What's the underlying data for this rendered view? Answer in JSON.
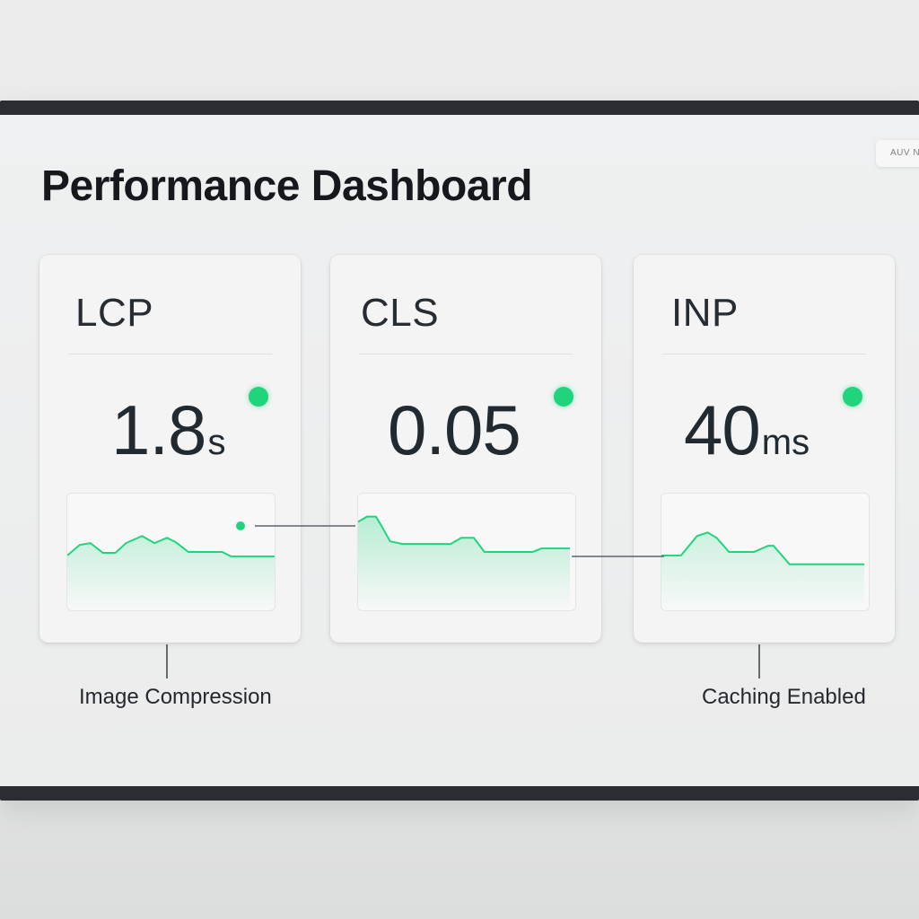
{
  "page": {
    "title": "Performance Dashboard",
    "corner_badge": "AUV N"
  },
  "colors": {
    "accent_green": "#1fd47a",
    "text_dark": "#1f252b",
    "card_bg": "#f4f4f5",
    "bezel": "#2a2d31"
  },
  "metrics": [
    {
      "label": "LCP",
      "value": "1.8",
      "unit": "s",
      "status": "good",
      "status_icon": "green-status-dot"
    },
    {
      "label": "CLS",
      "value": "0.05",
      "unit": "",
      "status": "good",
      "status_icon": "green-status-dot"
    },
    {
      "label": "INP",
      "value": "40",
      "unit": "ms",
      "status": "good",
      "status_icon": "green-status-dot"
    }
  ],
  "annotations": {
    "image_compression": "Image Compression",
    "caching_enabled": "Caching Enabled"
  }
}
